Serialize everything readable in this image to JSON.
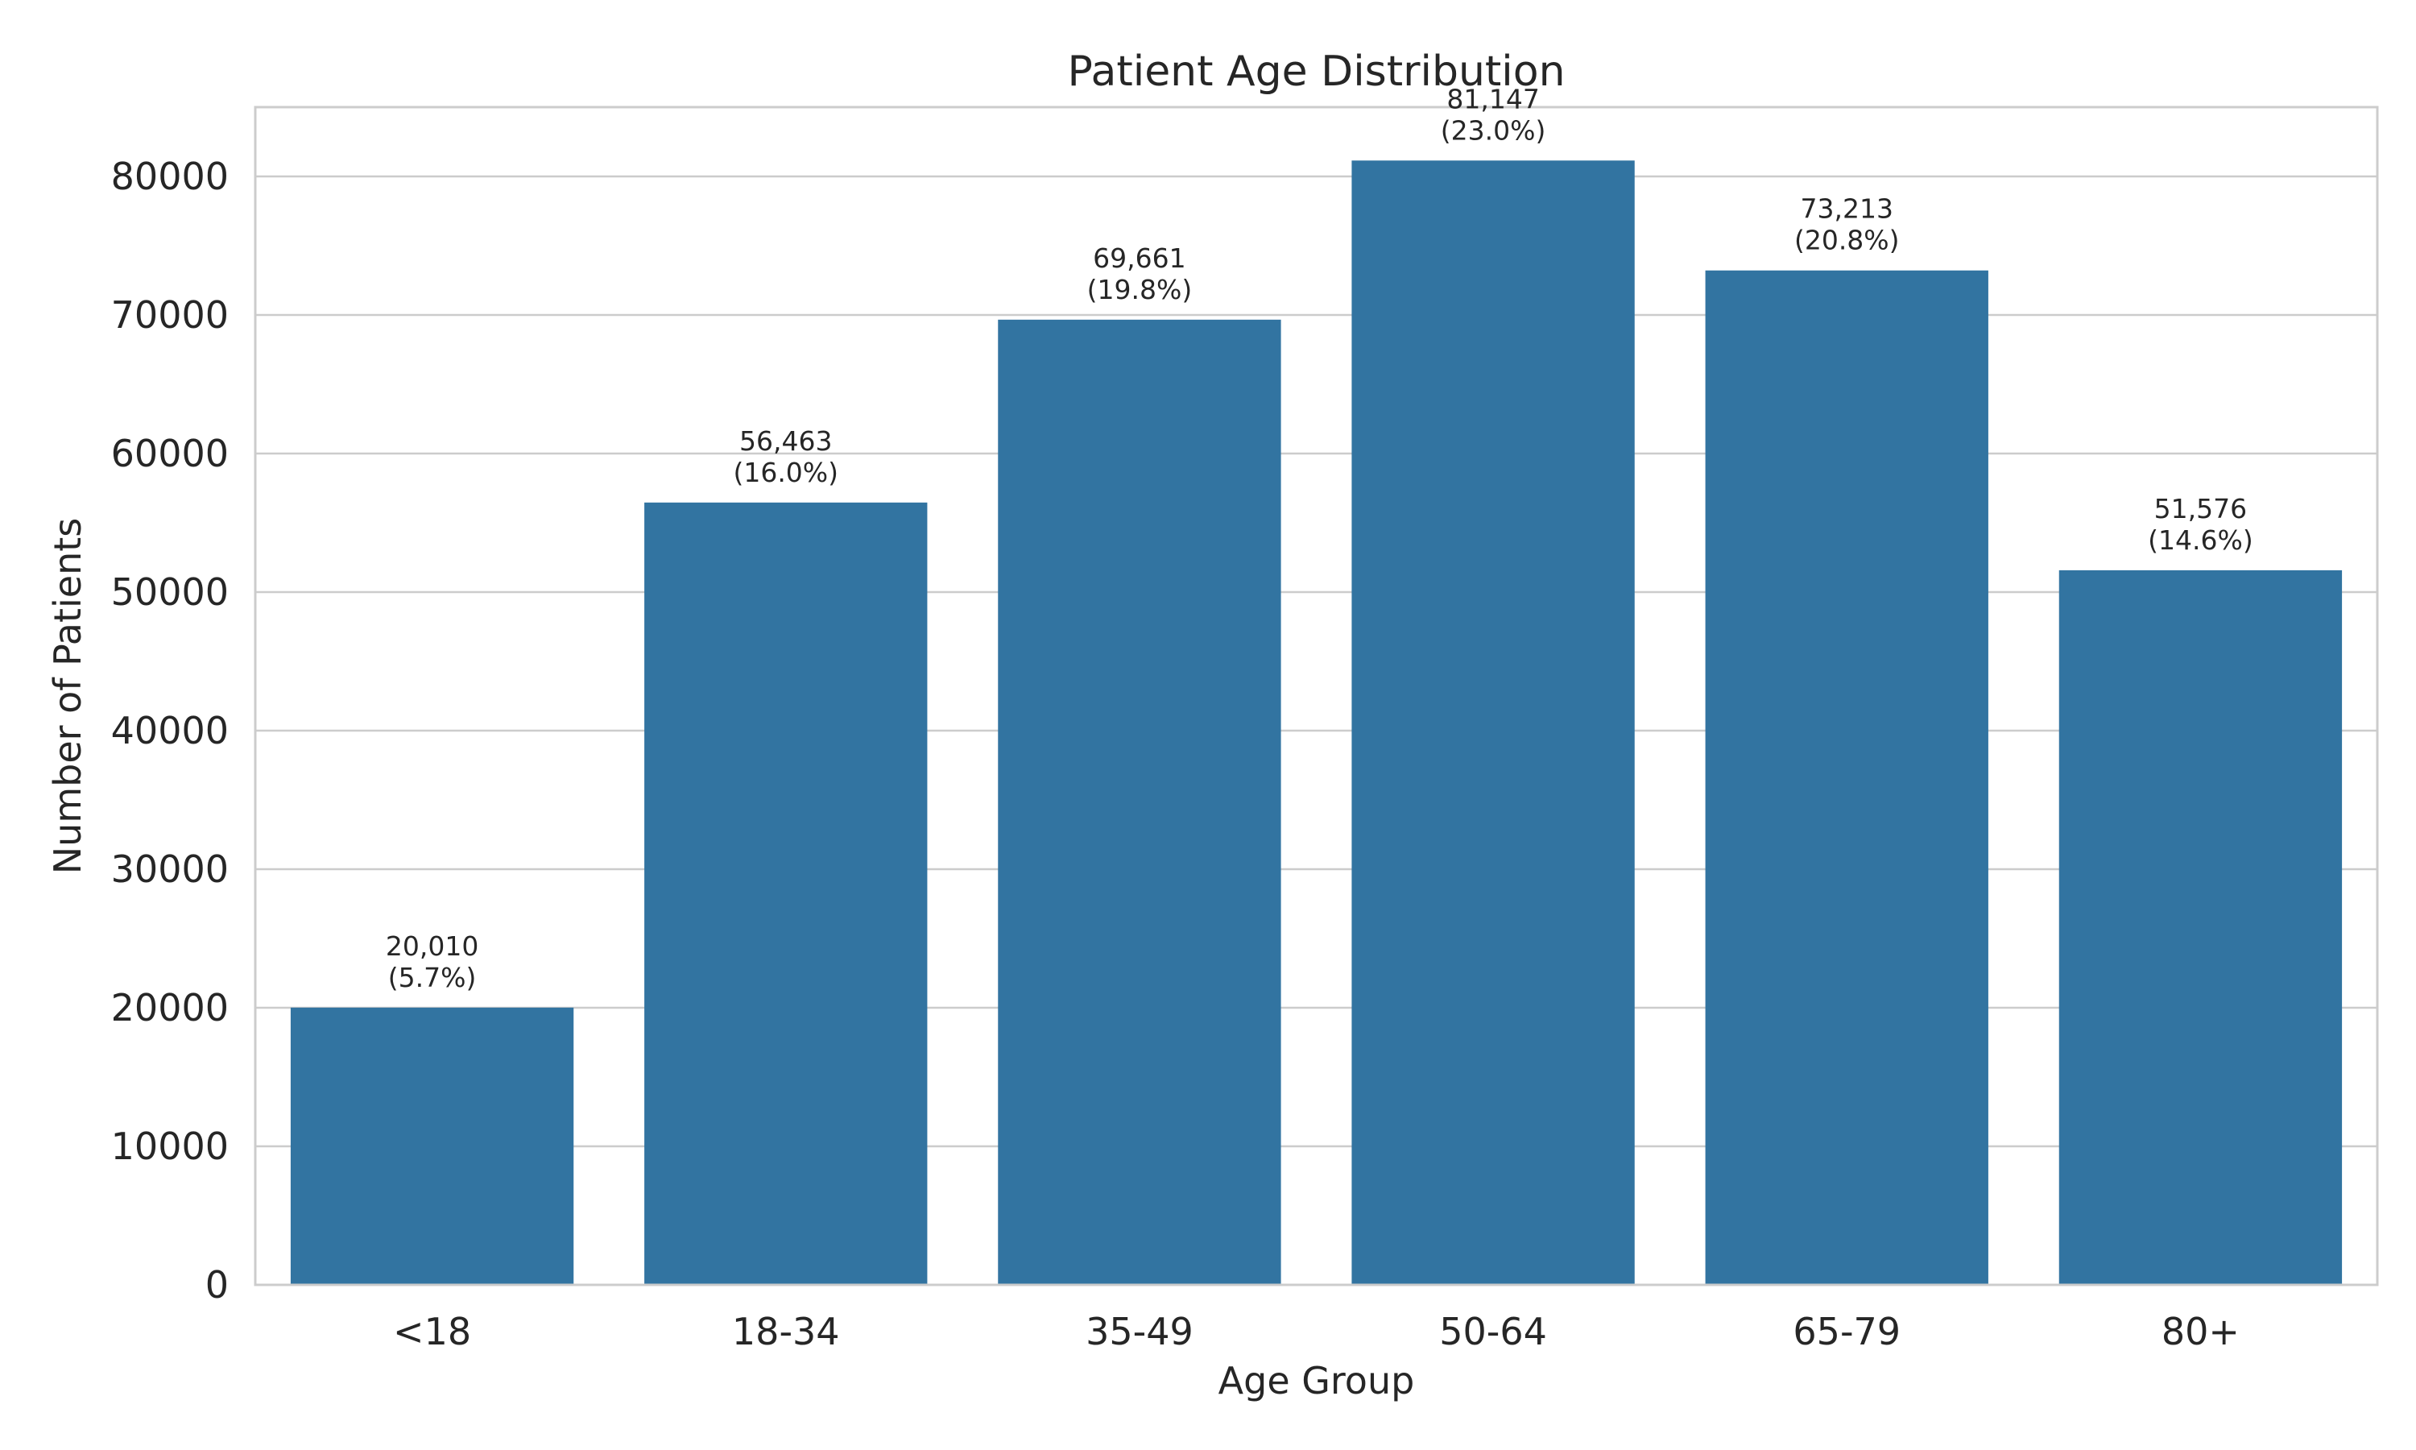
{
  "chart_data": {
    "type": "bar",
    "title": "Patient Age Distribution",
    "xlabel": "Age Group",
    "ylabel": "Number of Patients",
    "categories": [
      "<18",
      "18-34",
      "35-49",
      "50-64",
      "65-79",
      "80+"
    ],
    "values": [
      20010,
      56463,
      69661,
      81147,
      73213,
      51576
    ],
    "value_labels": [
      "20,010",
      "56,463",
      "69,661",
      "81,147",
      "73,213",
      "51,576"
    ],
    "percent_labels": [
      "(5.7%)",
      "(16.0%)",
      "(19.8%)",
      "(23.0%)",
      "(20.8%)",
      "(14.6%)"
    ],
    "ylim": [
      0,
      85000
    ],
    "yticks": [
      0,
      10000,
      20000,
      30000,
      40000,
      50000,
      60000,
      70000,
      80000
    ],
    "ytick_labels": [
      "0",
      "10000",
      "20000",
      "30000",
      "40000",
      "50000",
      "60000",
      "70000",
      "80000"
    ],
    "grid": true,
    "legend": "none",
    "colors": {
      "bar": "#3274a1",
      "grid": "#cccccc",
      "spine": "#cccccc",
      "text": "#262626"
    }
  }
}
